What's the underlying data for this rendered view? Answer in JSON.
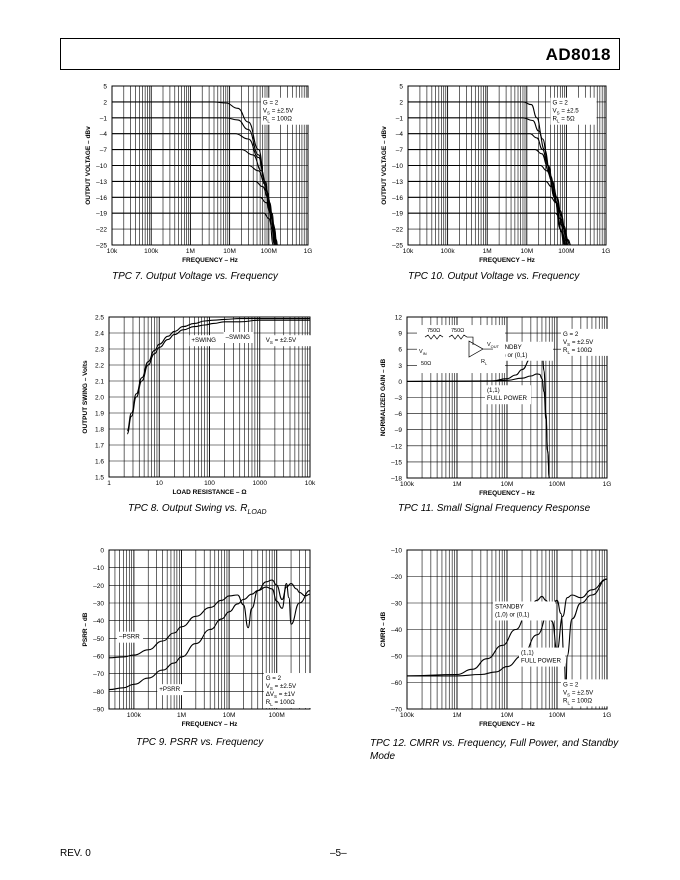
{
  "header": {
    "part": "AD8018"
  },
  "footer": {
    "rev": "REV. 0",
    "page": "–5–"
  },
  "chart_data": [
    {
      "id": "tpc7",
      "type": "line",
      "caption": "TPC 7.  Output Voltage vs. Frequency",
      "xlabel": "FREQUENCY – Hz",
      "ylabel": "OUTPUT VOLTAGE – dBv",
      "xscale": "log",
      "xlim": [
        10000,
        1000000000
      ],
      "ylim": [
        -25,
        5
      ],
      "xticks": [
        10000,
        100000,
        1000000,
        10000000,
        100000000,
        1000000000
      ],
      "xticklabels": [
        "10k",
        "100k",
        "1M",
        "10M",
        "100M",
        "1G"
      ],
      "yticks": [
        5,
        2,
        -1,
        -4,
        -7,
        -10,
        -13,
        -16,
        -19,
        -22,
        -25
      ],
      "yticklabels": [
        "5",
        "2",
        "–1",
        "–4",
        "–7",
        "–10",
        "–13",
        "–16",
        "–19",
        "–22",
        "–25"
      ],
      "annotations": [
        {
          "lines": [
            "G = 2",
            "V_S = ±2.5V",
            "R_L = 100Ω"
          ]
        }
      ],
      "series": [
        {
          "x": [
            10000,
            4000000,
            8000000,
            16000000,
            30000000,
            55000000,
            80000000,
            100000000,
            130000000
          ],
          "y": [
            2,
            2,
            1.8,
            0.8,
            -1.8,
            -7,
            -13,
            -18,
            -25
          ]
        },
        {
          "x": [
            10000,
            8000000,
            16000000,
            30000000,
            55000000,
            80000000,
            110000000,
            140000000
          ],
          "y": [
            -1,
            -1,
            -1.4,
            -3.2,
            -8,
            -13,
            -19,
            -25
          ]
        },
        {
          "x": [
            10000,
            14000000,
            30000000,
            55000000,
            80000000,
            110000000,
            145000000
          ],
          "y": [
            -4,
            -4,
            -5,
            -8.5,
            -13,
            -19,
            -25
          ]
        },
        {
          "x": [
            10000,
            20000000,
            40000000,
            65000000,
            90000000,
            120000000,
            150000000
          ],
          "y": [
            -7,
            -7,
            -8,
            -11,
            -15,
            -20,
            -25
          ]
        },
        {
          "x": [
            10000,
            30000000,
            55000000,
            80000000,
            105000000,
            130000000,
            155000000
          ],
          "y": [
            -10,
            -10,
            -11,
            -13.5,
            -17,
            -21,
            -25
          ]
        },
        {
          "x": [
            10000,
            45000000,
            70000000,
            95000000,
            120000000,
            140000000,
            160000000
          ],
          "y": [
            -13,
            -13,
            -14,
            -16,
            -19,
            -22,
            -25
          ]
        },
        {
          "x": [
            10000,
            60000000,
            85000000,
            110000000,
            135000000,
            155000000,
            165000000
          ],
          "y": [
            -16,
            -16,
            -17,
            -19,
            -21.5,
            -24,
            -25
          ]
        },
        {
          "x": [
            10000,
            75000000,
            100000000,
            125000000,
            150000000,
            170000000
          ],
          "y": [
            -19,
            -19,
            -20,
            -22,
            -24,
            -25
          ]
        }
      ]
    },
    {
      "id": "tpc10",
      "type": "line",
      "caption": "TPC 10.  Output Voltage vs. Frequency",
      "xlabel": "FREQUENCY – Hz",
      "ylabel": "OUTPUT VOLTAGE – dBv",
      "xscale": "log",
      "xlim": [
        10000,
        1000000000
      ],
      "ylim": [
        -25,
        5
      ],
      "xticks": [
        10000,
        100000,
        1000000,
        10000000,
        100000000,
        1000000000
      ],
      "xticklabels": [
        "10k",
        "100k",
        "1M",
        "10M",
        "100M",
        "1G"
      ],
      "yticks": [
        5,
        2,
        -1,
        -4,
        -7,
        -10,
        -13,
        -16,
        -19,
        -22,
        -25
      ],
      "yticklabels": [
        "5",
        "2",
        "–1",
        "–4",
        "–7",
        "–10",
        "–13",
        "–16",
        "–19",
        "–22",
        "–25"
      ],
      "annotations": [
        {
          "lines": [
            "G = 2",
            "V_S = ±2.5",
            "R_L = 5Ω"
          ]
        }
      ],
      "series": [
        {
          "x": [
            10000,
            8000000,
            13000000,
            18000000,
            25000000,
            35000000,
            50000000,
            70000000,
            90000000
          ],
          "y": [
            2,
            2,
            1.5,
            -1,
            -5,
            -10,
            -16,
            -22,
            -25
          ]
        },
        {
          "x": [
            10000,
            8000000,
            14000000,
            20000000,
            28000000,
            40000000,
            55000000,
            75000000,
            95000000
          ],
          "y": [
            -1,
            -1,
            -1.5,
            -3.5,
            -7,
            -12,
            -17,
            -22.5,
            -25
          ]
        },
        {
          "x": [
            10000,
            12000000,
            18000000,
            25000000,
            35000000,
            50000000,
            70000000,
            100000000
          ],
          "y": [
            -4,
            -4,
            -4.8,
            -7,
            -11,
            -16,
            -21,
            -25
          ]
        },
        {
          "x": [
            10000,
            16000000,
            24000000,
            33000000,
            45000000,
            60000000,
            80000000,
            105000000
          ],
          "y": [
            -7,
            -7,
            -7.8,
            -10,
            -13.5,
            -17.5,
            -21.5,
            -25
          ]
        },
        {
          "x": [
            10000,
            22000000,
            32000000,
            44000000,
            58000000,
            75000000,
            95000000,
            110000000
          ],
          "y": [
            -10,
            -10,
            -11,
            -13,
            -16,
            -19.5,
            -23,
            -25
          ]
        },
        {
          "x": [
            10000,
            30000000,
            42000000,
            55000000,
            70000000,
            88000000,
            110000000
          ],
          "y": [
            -13,
            -13,
            -14,
            -16,
            -18.5,
            -22,
            -25
          ]
        },
        {
          "x": [
            10000,
            40000000,
            55000000,
            70000000,
            88000000,
            105000000,
            120000000
          ],
          "y": [
            -16,
            -16,
            -17,
            -19,
            -21.5,
            -24,
            -25
          ]
        },
        {
          "x": [
            10000,
            52000000,
            70000000,
            90000000,
            110000000,
            130000000
          ],
          "y": [
            -19,
            -19,
            -20,
            -22,
            -24,
            -25
          ]
        }
      ]
    },
    {
      "id": "tpc8",
      "type": "line",
      "caption": "TPC 8.  Output Swing vs. R",
      "caption_sub": "LOAD",
      "xlabel": "LOAD RESISTANCE – Ω",
      "ylabel": "OUTPUT SWING – Volts",
      "xscale": "log",
      "xlim": [
        1,
        10000
      ],
      "ylim": [
        1.5,
        2.5
      ],
      "xticks": [
        1,
        10,
        100,
        1000,
        10000
      ],
      "xticklabels": [
        "1",
        "10",
        "100",
        "1000",
        "10k"
      ],
      "yticks": [
        2.5,
        2.4,
        2.3,
        2.2,
        2.1,
        2.0,
        1.9,
        1.8,
        1.7,
        1.6,
        1.5
      ],
      "yticklabels": [
        "2.5",
        "2.4",
        "2.3",
        "2.2",
        "2.1",
        "2.0",
        "1.9",
        "1.8",
        "1.7",
        "1.6",
        "1.5"
      ],
      "annotations": [
        {
          "lines": [
            "V_S = ±2.5V"
          ]
        },
        {
          "lines": [
            "+SWING"
          ]
        },
        {
          "lines": [
            "–SWING"
          ]
        }
      ],
      "series": [
        {
          "name": "+SWING",
          "x": [
            2.3,
            2.8,
            3.5,
            4.5,
            6,
            8,
            10,
            15,
            20,
            30,
            50,
            80,
            120,
            200,
            400,
            1000,
            3000,
            10000
          ],
          "y": [
            1.77,
            1.88,
            2.0,
            2.1,
            2.2,
            2.27,
            2.31,
            2.36,
            2.39,
            2.42,
            2.44,
            2.45,
            2.46,
            2.47,
            2.47,
            2.48,
            2.48,
            2.48
          ]
        },
        {
          "name": "–SWING",
          "x": [
            2.3,
            2.8,
            3.5,
            4.5,
            6,
            8,
            10,
            15,
            20,
            30,
            50,
            80,
            120,
            200,
            400,
            1000,
            3000,
            10000
          ],
          "y": [
            1.79,
            1.9,
            2.02,
            2.12,
            2.22,
            2.29,
            2.33,
            2.38,
            2.41,
            2.44,
            2.46,
            2.475,
            2.48,
            2.485,
            2.49,
            2.49,
            2.49,
            2.49
          ]
        }
      ]
    },
    {
      "id": "tpc11",
      "type": "line",
      "caption": "TPC 11.  Small Signal Frequency Response",
      "xlabel": "FREQUENCY – Hz",
      "ylabel": "NORMALIZED GAIN – dB",
      "xscale": "log",
      "xlim": [
        100000,
        1000000000
      ],
      "ylim": [
        -18,
        12
      ],
      "xticks": [
        100000,
        1000000,
        10000000,
        100000000,
        1000000000
      ],
      "xticklabels": [
        "100k",
        "1M",
        "10M",
        "100M",
        "1G"
      ],
      "yticks": [
        12,
        9,
        6,
        3,
        0,
        -3,
        -6,
        -9,
        -12,
        -15,
        -18
      ],
      "yticklabels": [
        "12",
        "9",
        "6",
        "3",
        "0",
        "–3",
        "–6",
        "–9",
        "–12",
        "–15",
        "–18"
      ],
      "annotations": [
        {
          "lines": [
            "G = 2",
            "V_S = ±2.5V",
            "R_L = 100Ω"
          ]
        },
        {
          "lines": [
            "STANDBY",
            "(1,0) or (0,1)"
          ]
        },
        {
          "lines": [
            "(1,1)",
            "FULL POWER"
          ]
        },
        {
          "lines": [
            "750Ω",
            "750Ω",
            "V_IN",
            "50Ω",
            "V_OUT",
            "R_L"
          ]
        }
      ],
      "series": [
        {
          "name": "STANDBY",
          "x": [
            100000,
            5000000,
            10000000,
            15000000,
            20000000,
            30000000,
            40000000,
            45000000,
            50000000,
            55000000,
            60000000,
            65000000,
            70000000
          ],
          "y": [
            0,
            0.1,
            0.5,
            1.2,
            2.2,
            4.3,
            6.6,
            7.3,
            6.5,
            2,
            -6,
            -13,
            -18
          ]
        },
        {
          "name": "FULL POWER",
          "x": [
            100000,
            5000000,
            10000000,
            20000000,
            30000000,
            40000000,
            45000000,
            50000000,
            55000000,
            60000000,
            65000000,
            70000000
          ],
          "y": [
            0,
            0.05,
            0.2,
            0.6,
            1.0,
            1.4,
            1.3,
            0.5,
            -2,
            -7,
            -13,
            -18
          ]
        }
      ]
    },
    {
      "id": "tpc9",
      "type": "line",
      "caption": "TPC 9.  PSRR vs. Frequency",
      "xlabel": "FREQUENCY – Hz",
      "ylabel": "PSRR – dB",
      "xscale": "log",
      "xlim": [
        30000,
        500000000
      ],
      "ylim": [
        -90,
        0
      ],
      "xticks": [
        100000,
        1000000,
        10000000,
        100000000
      ],
      "xticklabels": [
        "100k",
        "1M",
        "10M",
        "100M"
      ],
      "yticks": [
        0,
        -10,
        -20,
        -30,
        -40,
        -50,
        -60,
        -70,
        -80,
        -90
      ],
      "yticklabels": [
        "0",
        "–10",
        "–20",
        "–30",
        "–40",
        "–50",
        "–60",
        "–70",
        "–80",
        "–90"
      ],
      "annotations": [
        {
          "lines": [
            "G = 2",
            "V_S = ±2.5V",
            "ΔV_S = ±1V",
            "R_L = 100Ω"
          ]
        },
        {
          "lines": [
            "–PSRR"
          ]
        },
        {
          "lines": [
            "+PSRR"
          ]
        }
      ],
      "series": [
        {
          "name": "–PSRR",
          "x": [
            30000,
            60000,
            100000,
            200000,
            400000,
            700000,
            1000000,
            2000000,
            4000000,
            7000000,
            10000000,
            15000000,
            20000000,
            25000000,
            30000000,
            40000000,
            60000000,
            80000000,
            100000000,
            130000000,
            160000000,
            200000000,
            260000000,
            300000000,
            400000000,
            500000000
          ],
          "y": [
            -61,
            -60.5,
            -59.5,
            -56.5,
            -51.5,
            -47,
            -43.5,
            -37.5,
            -32.5,
            -28.5,
            -26,
            -25.5,
            -31,
            -44,
            -33,
            -23,
            -18,
            -17,
            -20,
            -28,
            -21,
            -19,
            -22,
            -24,
            -26,
            -25
          ]
        },
        {
          "name": "+PSRR",
          "x": [
            30000,
            60000,
            100000,
            200000,
            400000,
            700000,
            1000000,
            2000000,
            4000000,
            7000000,
            10000000,
            15000000,
            20000000,
            30000000,
            40000000,
            60000000,
            80000000,
            100000000,
            130000000,
            160000000,
            180000000,
            200000000,
            300000000,
            500000000
          ],
          "y": [
            -79,
            -78,
            -76,
            -72.5,
            -68,
            -64,
            -60.5,
            -53,
            -45,
            -39,
            -35,
            -30.5,
            -28,
            -25,
            -23,
            -21,
            -22,
            -29,
            -33,
            -19,
            -27,
            -42,
            -30,
            -23
          ]
        }
      ]
    },
    {
      "id": "tpc12",
      "type": "line",
      "caption": "TPC 12.  CMRR vs. Frequency, Full Power, and Standby Mode",
      "xlabel": "FREQUENCY – Hz",
      "ylabel": "CMRR – dB",
      "xscale": "log",
      "xlim": [
        100000,
        1000000000
      ],
      "ylim": [
        -70,
        -10
      ],
      "xticks": [
        100000,
        1000000,
        10000000,
        100000000,
        1000000000
      ],
      "xticklabels": [
        "100k",
        "1M",
        "10M",
        "100M",
        "1G"
      ],
      "yticks": [
        -10,
        -20,
        -30,
        -40,
        -50,
        -60,
        -70
      ],
      "yticklabels": [
        "–10",
        "–20",
        "–30",
        "–40",
        "–50",
        "–60",
        "–70"
      ],
      "annotations": [
        {
          "lines": [
            "G = 2",
            "V_S = ±2.5V",
            "R_L = 100Ω"
          ]
        },
        {
          "lines": [
            "STANDBY",
            "(1,0) or (0,1)"
          ]
        },
        {
          "lines": [
            "(1,1)",
            "FULL POWER"
          ]
        }
      ],
      "series": [
        {
          "name": "STANDBY",
          "x": [
            100000,
            1000000,
            2000000,
            4000000,
            8000000,
            15000000,
            25000000,
            40000000,
            50000000,
            60000000,
            80000000,
            100000000,
            130000000,
            160000000,
            200000000,
            300000000,
            500000000,
            1000000000
          ],
          "y": [
            -57.5,
            -57,
            -55,
            -51,
            -46,
            -40,
            -34,
            -29,
            -27.5,
            -29,
            -37,
            -48,
            -35,
            -28,
            -27,
            -28,
            -25,
            -21
          ]
        },
        {
          "name": "FULL POWER",
          "x": [
            100000,
            1000000,
            3000000,
            6000000,
            10000000,
            20000000,
            40000000,
            70000000,
            100000000,
            120000000,
            140000000,
            150000000,
            160000000,
            200000000,
            300000000,
            500000000,
            1000000000
          ],
          "y": [
            -57.5,
            -57.5,
            -57,
            -56,
            -54,
            -50,
            -42,
            -33,
            -29,
            -34,
            -52,
            -63,
            -50,
            -36,
            -30,
            -27,
            -21
          ]
        }
      ]
    }
  ]
}
